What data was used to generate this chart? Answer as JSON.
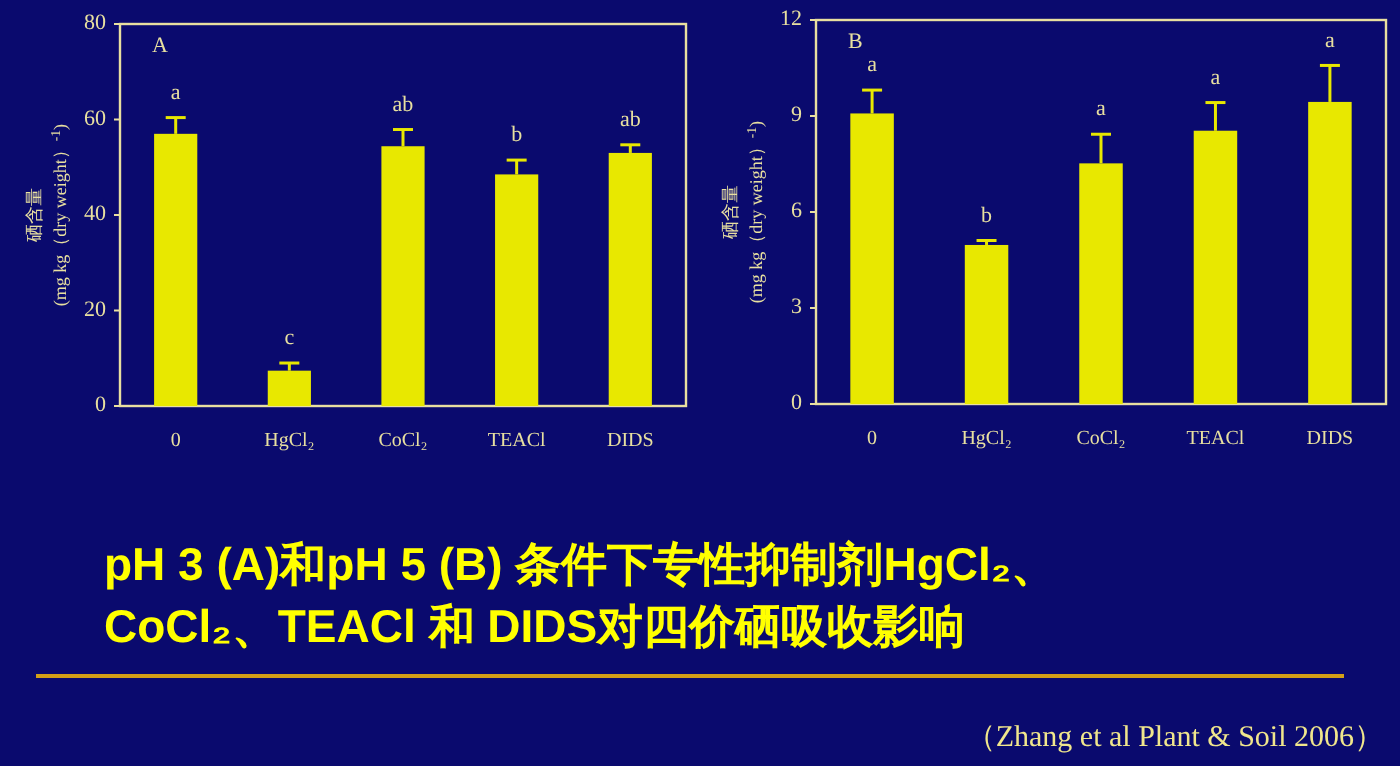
{
  "chart_data": [
    {
      "type": "bar",
      "ylabel": "硒含量\n(mg kg（dry weight）$^{-1}$)",
      "categories": [
        "0",
        "HgCl₂",
        "CoCl₂",
        "TEACl",
        "DIDS"
      ],
      "values": [
        57,
        7.4,
        54.4,
        48.5,
        53
      ],
      "errors": [
        3.4,
        1.6,
        3.5,
        3,
        1.7
      ],
      "color": "#e8e800",
      "ylim": [
        0,
        80
      ],
      "yticks": [
        0,
        20,
        40,
        60,
        80
      ],
      "annotations": [
        "A",
        {
          "text": "a",
          "x": "0",
          "y": 57
        },
        {
          "text": "c",
          "x": "HgCl₂",
          "y": 7.4
        },
        {
          "text": "ab",
          "x": "CoCl₂",
          "y": 54.4
        },
        {
          "text": "b",
          "x": "TEACl",
          "y": 48.5
        },
        {
          "text": "ab",
          "x": "DIDS",
          "y": 53
        }
      ]
    },
    {
      "type": "bar",
      "ylabel": "硒含量\n(mg kg（dry weight）$^{-1}$)",
      "categories": [
        "0",
        "HgCl₂",
        "CoCl₂",
        "TEACl",
        "DIDS"
      ],
      "values": [
        9.08,
        4.97,
        7.52,
        8.54,
        9.44
      ],
      "errors": [
        0.73,
        0.14,
        0.91,
        0.88,
        1.14
      ],
      "color": "#e8e800",
      "ylim": [
        0,
        12
      ],
      "yticks": [
        0,
        3,
        6,
        9,
        12
      ],
      "annotations": [
        "B",
        {
          "text": "a",
          "x": "0",
          "y": 9.08
        },
        {
          "text": "b",
          "x": "HgCl₂",
          "y": 4.97
        },
        {
          "text": "a",
          "x": "CoCl₂",
          "y": 7.52
        },
        {
          "text": "a",
          "x": "TEACl",
          "y": 8.54
        },
        {
          "text": "a",
          "x": "DIDS",
          "y": 9.44
        }
      ]
    },
    {
      "type": "other",
      "title": "pH 3 (A)和pH 5 (B) 条件下专性抑制剂HgCl₂、\nCoCl₂、TEACl 和 DIDS对四价硒吸收影响",
      "annotations": [
        "（Zhang et al Plant & Soil 2006）"
      ]
    }
  ]
}
